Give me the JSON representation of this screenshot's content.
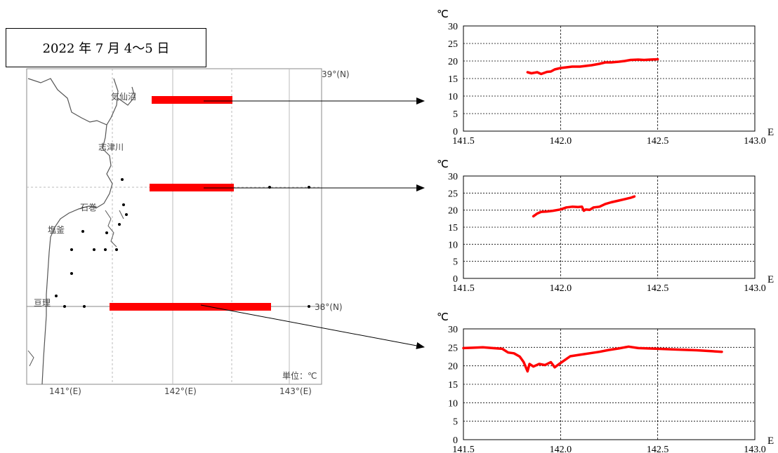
{
  "date_label": "2022 年 7 月 4～5 日",
  "map": {
    "lat_labels": [
      "39°(N)",
      "38°(N)"
    ],
    "lon_labels": [
      "141°(E)",
      "142°(E)",
      "143°(E)"
    ],
    "unit": "単位：℃",
    "places": [
      "気仙沼",
      "志津川",
      "石巻",
      "塩釜",
      "亘理"
    ],
    "colors": {
      "coast": "#555555",
      "grid": "#bbbbbb",
      "transect": "#ff0000",
      "station": "#000000"
    }
  },
  "chart_data": [
    {
      "type": "line",
      "title": "",
      "xlabel": "E",
      "ylabel": "℃",
      "xlim": [
        141.5,
        143.0
      ],
      "ylim": [
        0,
        30
      ],
      "x_ticks": [
        "141.5",
        "142.0",
        "142.5",
        "143.0"
      ],
      "y_ticks": [
        "0",
        "5",
        "10",
        "15",
        "20",
        "25",
        "30"
      ],
      "grid": true,
      "color": "#ff0000",
      "series": [
        {
          "x": [
            141.83,
            141.85,
            141.88,
            141.9,
            141.93,
            141.95,
            141.97,
            142.0,
            142.03,
            142.06,
            142.1,
            142.13,
            142.16,
            142.2,
            142.23,
            142.26,
            142.3,
            142.33,
            142.36,
            142.4,
            142.43,
            142.46,
            142.5
          ],
          "y": [
            16.8,
            16.5,
            16.8,
            16.3,
            16.9,
            17.0,
            17.6,
            18.0,
            18.2,
            18.4,
            18.4,
            18.6,
            18.8,
            19.2,
            19.6,
            19.6,
            19.8,
            20.0,
            20.3,
            20.4,
            20.3,
            20.4,
            20.5
          ]
        }
      ]
    },
    {
      "type": "line",
      "title": "",
      "xlabel": "E",
      "ylabel": "℃",
      "xlim": [
        141.5,
        143.0
      ],
      "ylim": [
        0,
        30
      ],
      "x_ticks": [
        "141.5",
        "142.0",
        "142.5",
        "143.0"
      ],
      "y_ticks": [
        "0",
        "5",
        "10",
        "15",
        "20",
        "25",
        "30"
      ],
      "grid": true,
      "color": "#ff0000",
      "series": [
        {
          "x": [
            141.86,
            141.88,
            141.9,
            141.93,
            141.96,
            142.0,
            142.03,
            142.06,
            142.09,
            142.11,
            142.12,
            142.13,
            142.15,
            142.17,
            142.2,
            142.23,
            142.26,
            142.3,
            142.33,
            142.36,
            142.38
          ],
          "y": [
            18.2,
            19.0,
            19.5,
            19.6,
            19.8,
            20.2,
            20.8,
            21.0,
            20.9,
            21.0,
            19.8,
            20.2,
            20.1,
            20.8,
            21.0,
            21.8,
            22.3,
            22.8,
            23.2,
            23.6,
            24.0
          ]
        }
      ]
    },
    {
      "type": "line",
      "title": "",
      "xlabel": "E",
      "ylabel": "℃",
      "xlim": [
        141.5,
        143.0
      ],
      "ylim": [
        0,
        30
      ],
      "x_ticks": [
        "141.5",
        "142.0",
        "142.5",
        "143.0"
      ],
      "y_ticks": [
        "0",
        "5",
        "10",
        "15",
        "20",
        "25",
        "30"
      ],
      "grid": true,
      "color": "#ff0000",
      "series": [
        {
          "x": [
            141.5,
            141.55,
            141.6,
            141.65,
            141.7,
            141.73,
            141.76,
            141.79,
            141.81,
            141.83,
            141.84,
            141.86,
            141.89,
            141.92,
            141.95,
            141.97,
            141.99,
            142.02,
            142.05,
            142.1,
            142.15,
            142.2,
            142.25,
            142.3,
            142.35,
            142.4,
            142.5,
            142.6,
            142.7,
            142.83
          ],
          "y": [
            24.8,
            24.9,
            25.0,
            24.8,
            24.6,
            23.6,
            23.4,
            22.5,
            21.0,
            18.5,
            20.5,
            19.8,
            20.5,
            20.2,
            21.0,
            19.6,
            20.4,
            21.5,
            22.6,
            23.0,
            23.4,
            23.8,
            24.3,
            24.7,
            25.2,
            24.8,
            24.6,
            24.4,
            24.2,
            23.8
          ]
        }
      ]
    }
  ]
}
